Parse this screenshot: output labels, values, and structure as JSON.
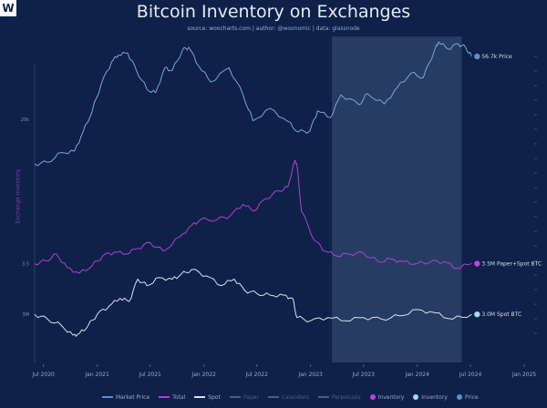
{
  "logo_text": "W",
  "chart_data": {
    "type": "line",
    "title": "Bitcoin Inventory on Exchanges",
    "subtitle_source_label": "source:",
    "subtitle_source": "woocharts.com",
    "subtitle_author_label": "| author:",
    "subtitle_author": "@woonomic",
    "subtitle_data_label": "| data:",
    "subtitle_data": "glassnode",
    "ylabel": "Exchange Inventory",
    "x_range": [
      "2020-06-01",
      "2025-02-01"
    ],
    "x_ticks": [
      {
        "date": "2020-07-01",
        "label": "Jul 2020"
      },
      {
        "date": "2021-01-01",
        "label": "Jan 2021"
      },
      {
        "date": "2021-07-01",
        "label": "Jul 2021"
      },
      {
        "date": "2022-01-01",
        "label": "Jan 2022"
      },
      {
        "date": "2022-07-01",
        "label": "Jul 2022"
      },
      {
        "date": "2023-01-01",
        "label": "Jan 2023"
      },
      {
        "date": "2023-07-01",
        "label": "Jul 2023"
      },
      {
        "date": "2024-01-01",
        "label": "Jan 2024"
      },
      {
        "date": "2024-07-01",
        "label": "Jul 2024"
      },
      {
        "date": "2025-01-01",
        "label": "Jan 2025"
      }
    ],
    "left_ticks": [
      {
        "series": "Market Price",
        "value": 20000,
        "label": "20k"
      },
      {
        "series": "Total",
        "value": 3.5,
        "label": "3.5"
      },
      {
        "series": "Spot",
        "value": 3.0,
        "label": "3M"
      }
    ],
    "highlight_range": [
      "2023-03-15",
      "2024-06-01"
    ],
    "series": [
      {
        "name": "Market Price",
        "color": "#7aa6dc",
        "end_label": "56.7k Price",
        "dot_color": "#5b8fd0",
        "points": [
          [
            "2020-06-01",
            9500
          ],
          [
            "2020-07-15",
            9800
          ],
          [
            "2020-09-01",
            11500
          ],
          [
            "2020-10-15",
            11800
          ],
          [
            "2020-11-15",
            16500
          ],
          [
            "2020-12-15",
            23000
          ],
          [
            "2021-01-15",
            36000
          ],
          [
            "2021-02-20",
            52000
          ],
          [
            "2021-03-15",
            58000
          ],
          [
            "2021-04-15",
            60000
          ],
          [
            "2021-05-15",
            45000
          ],
          [
            "2021-06-20",
            33000
          ],
          [
            "2021-07-20",
            31000
          ],
          [
            "2021-08-20",
            47000
          ],
          [
            "2021-09-15",
            45000
          ],
          [
            "2021-10-20",
            63000
          ],
          [
            "2021-11-10",
            66000
          ],
          [
            "2021-12-15",
            48000
          ],
          [
            "2022-01-25",
            37000
          ],
          [
            "2022-03-28",
            47000
          ],
          [
            "2022-05-15",
            30000
          ],
          [
            "2022-06-18",
            19500
          ],
          [
            "2022-08-15",
            24000
          ],
          [
            "2022-10-15",
            19300
          ],
          [
            "2022-11-20",
            16200
          ],
          [
            "2022-12-30",
            16500
          ],
          [
            "2023-01-25",
            23000
          ],
          [
            "2023-03-10",
            20500
          ],
          [
            "2023-04-15",
            30000
          ],
          [
            "2023-06-15",
            25500
          ],
          [
            "2023-07-15",
            30500
          ],
          [
            "2023-09-10",
            25800
          ],
          [
            "2023-10-25",
            34000
          ],
          [
            "2023-12-10",
            43000
          ],
          [
            "2024-01-22",
            40000
          ],
          [
            "2024-02-28",
            62000
          ],
          [
            "2024-03-14",
            72000
          ],
          [
            "2024-04-15",
            64000
          ],
          [
            "2024-05-20",
            70000
          ],
          [
            "2024-06-15",
            65500
          ],
          [
            "2024-07-05",
            56700
          ]
        ]
      },
      {
        "name": "Total",
        "color": "#b13fd6",
        "end_label": "3.5M Paper+Spot BTC",
        "dot_color": "#c040e0",
        "points": [
          [
            "2020-06-01",
            3.5
          ],
          [
            "2020-07-10",
            3.53
          ],
          [
            "2020-08-15",
            3.6
          ],
          [
            "2020-09-20",
            3.46
          ],
          [
            "2020-11-01",
            3.4
          ],
          [
            "2020-12-15",
            3.48
          ],
          [
            "2021-01-20",
            3.58
          ],
          [
            "2021-03-01",
            3.62
          ],
          [
            "2021-04-10",
            3.6
          ],
          [
            "2021-05-20",
            3.66
          ],
          [
            "2021-07-01",
            3.72
          ],
          [
            "2021-08-15",
            3.63
          ],
          [
            "2021-10-10",
            3.78
          ],
          [
            "2021-11-20",
            3.9
          ],
          [
            "2021-12-20",
            3.96
          ],
          [
            "2022-02-15",
            3.96
          ],
          [
            "2022-04-01",
            4.0
          ],
          [
            "2022-05-15",
            4.12
          ],
          [
            "2022-06-20",
            4.05
          ],
          [
            "2022-08-01",
            4.18
          ],
          [
            "2022-09-15",
            4.26
          ],
          [
            "2022-10-15",
            4.3
          ],
          [
            "2022-11-08",
            4.58
          ],
          [
            "2022-11-15",
            4.54
          ],
          [
            "2022-12-01",
            4.05
          ],
          [
            "2023-01-15",
            3.74
          ],
          [
            "2023-02-20",
            3.63
          ],
          [
            "2023-04-01",
            3.58
          ],
          [
            "2023-05-15",
            3.6
          ],
          [
            "2023-07-01",
            3.61
          ],
          [
            "2023-08-20",
            3.52
          ],
          [
            "2023-10-01",
            3.55
          ],
          [
            "2023-11-15",
            3.52
          ],
          [
            "2024-01-01",
            3.5
          ],
          [
            "2024-02-15",
            3.52
          ],
          [
            "2024-04-01",
            3.52
          ],
          [
            "2024-05-15",
            3.45
          ],
          [
            "2024-07-05",
            3.5
          ]
        ]
      },
      {
        "name": "Spot",
        "color": "#d6e2f2",
        "end_label": "3.0M Spot BTC",
        "dot_color": "#a9d8e8",
        "points": [
          [
            "2020-06-01",
            3.0
          ],
          [
            "2020-07-15",
            2.97
          ],
          [
            "2020-09-01",
            2.93
          ],
          [
            "2020-10-10",
            2.87
          ],
          [
            "2020-11-01",
            2.88
          ],
          [
            "2020-12-01",
            2.93
          ],
          [
            "2021-01-01",
            3.0
          ],
          [
            "2021-02-10",
            3.05
          ],
          [
            "2021-03-20",
            3.1
          ],
          [
            "2021-04-20",
            3.08
          ],
          [
            "2021-05-20",
            3.22
          ],
          [
            "2021-06-20",
            3.18
          ],
          [
            "2021-08-01",
            3.23
          ],
          [
            "2021-09-15",
            3.22
          ],
          [
            "2021-10-15",
            3.25
          ],
          [
            "2021-11-20",
            3.28
          ],
          [
            "2022-01-10",
            3.24
          ],
          [
            "2022-03-01",
            3.18
          ],
          [
            "2022-04-15",
            3.22
          ],
          [
            "2022-05-20",
            3.15
          ],
          [
            "2022-07-01",
            3.13
          ],
          [
            "2022-08-15",
            3.12
          ],
          [
            "2022-10-01",
            3.12
          ],
          [
            "2022-11-01",
            3.1
          ],
          [
            "2022-11-15",
            2.98
          ],
          [
            "2023-01-01",
            2.96
          ],
          [
            "2023-03-01",
            2.98
          ],
          [
            "2023-05-01",
            2.96
          ],
          [
            "2023-07-01",
            2.98
          ],
          [
            "2023-09-01",
            2.97
          ],
          [
            "2023-11-01",
            2.99
          ],
          [
            "2024-01-01",
            3.03
          ],
          [
            "2024-03-01",
            3.01
          ],
          [
            "2024-05-01",
            2.97
          ],
          [
            "2024-07-05",
            3.0
          ]
        ]
      }
    ],
    "legend": [
      {
        "label": "Market Price",
        "kind": "line",
        "color": "#5b8fd0",
        "active": true
      },
      {
        "label": "Total",
        "kind": "line",
        "color": "#b13fd6",
        "active": true
      },
      {
        "label": "Spot",
        "kind": "line",
        "color": "#d6e2f2",
        "active": true
      },
      {
        "label": "Paper",
        "kind": "line",
        "color": "#4a5d86",
        "active": false
      },
      {
        "label": "Calendars",
        "kind": "line",
        "color": "#4a5d86",
        "active": false
      },
      {
        "label": "Perpetuals",
        "kind": "line",
        "color": "#4a5d86",
        "active": false
      },
      {
        "label": "Inventory",
        "kind": "dot",
        "color": "#c040e0",
        "active": true
      },
      {
        "label": "Inventory",
        "kind": "dot",
        "color": "#a9d8e8",
        "active": true
      },
      {
        "label": "Price",
        "kind": "dot",
        "color": "#5b8fd0",
        "active": true
      }
    ]
  }
}
